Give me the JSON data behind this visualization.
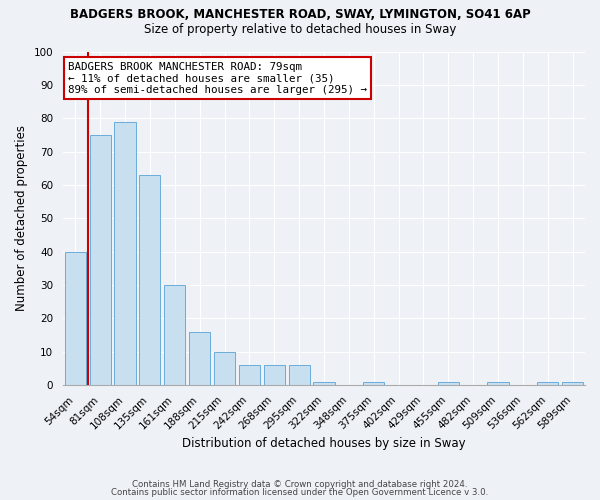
{
  "title": "BADGERS BROOK, MANCHESTER ROAD, SWAY, LYMINGTON, SO41 6AP",
  "subtitle": "Size of property relative to detached houses in Sway",
  "xlabel": "Distribution of detached houses by size in Sway",
  "ylabel": "Number of detached properties",
  "bar_labels": [
    "54sqm",
    "81sqm",
    "108sqm",
    "135sqm",
    "161sqm",
    "188sqm",
    "215sqm",
    "242sqm",
    "268sqm",
    "295sqm",
    "322sqm",
    "348sqm",
    "375sqm",
    "402sqm",
    "429sqm",
    "455sqm",
    "482sqm",
    "509sqm",
    "536sqm",
    "562sqm",
    "589sqm"
  ],
  "bar_values": [
    40,
    75,
    79,
    63,
    30,
    16,
    10,
    6,
    6,
    6,
    1,
    0,
    1,
    0,
    0,
    1,
    0,
    1,
    0,
    1,
    1
  ],
  "bar_face_color": "#c8dff0",
  "bar_edge_color": "#6aacdb",
  "red_line_x": 1,
  "red_line_color": "#cc0000",
  "annotation_title": "BADGERS BROOK MANCHESTER ROAD: 79sqm",
  "annotation_line1": "← 11% of detached houses are smaller (35)",
  "annotation_line2": "89% of semi-detached houses are larger (295) →",
  "annotation_box_color": "#ffffff",
  "annotation_border_color": "#cc0000",
  "ylim": [
    0,
    100
  ],
  "yticks": [
    0,
    10,
    20,
    30,
    40,
    50,
    60,
    70,
    80,
    90,
    100
  ],
  "footer1": "Contains HM Land Registry data © Crown copyright and database right 2024.",
  "footer2": "Contains public sector information licensed under the Open Government Licence v 3.0.",
  "bg_color": "#eef2f7",
  "grid_color": "#ffffff",
  "title_fontsize": 8.5,
  "subtitle_fontsize": 8.5,
  "axis_label_fontsize": 8.5,
  "tick_fontsize": 7.5,
  "annotation_fontsize": 7.8,
  "footer_fontsize": 6.2
}
